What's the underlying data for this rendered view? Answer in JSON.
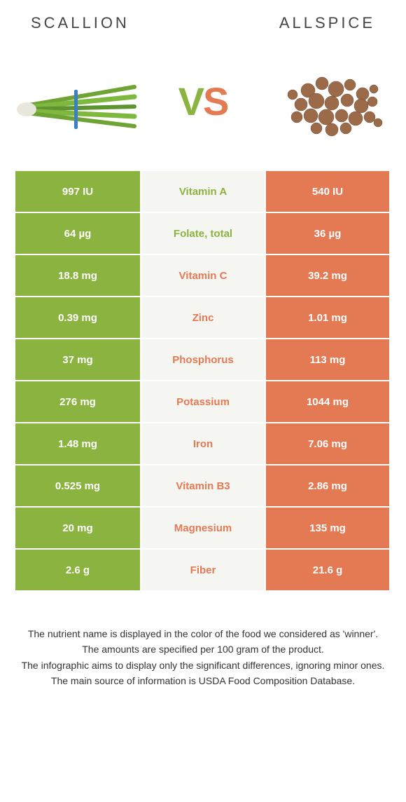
{
  "header": {
    "left_title": "SCALLION",
    "right_title": "ALLSPICE"
  },
  "vs": {
    "v": "V",
    "s": "S"
  },
  "colors": {
    "green": "#8bb33f",
    "orange": "#e37a54",
    "mid_bg": "#f5f5f1"
  },
  "rows": [
    {
      "name": "Vitamin A",
      "left": "997 IU",
      "right": "540 IU",
      "winner": "left"
    },
    {
      "name": "Folate, total",
      "left": "64 µg",
      "right": "36 µg",
      "winner": "left"
    },
    {
      "name": "Vitamin C",
      "left": "18.8 mg",
      "right": "39.2 mg",
      "winner": "right"
    },
    {
      "name": "Zinc",
      "left": "0.39 mg",
      "right": "1.01 mg",
      "winner": "right"
    },
    {
      "name": "Phosphorus",
      "left": "37 mg",
      "right": "113 mg",
      "winner": "right"
    },
    {
      "name": "Potassium",
      "left": "276 mg",
      "right": "1044 mg",
      "winner": "right"
    },
    {
      "name": "Iron",
      "left": "1.48 mg",
      "right": "7.06 mg",
      "winner": "right"
    },
    {
      "name": "Vitamin B3",
      "left": "0.525 mg",
      "right": "2.86 mg",
      "winner": "right"
    },
    {
      "name": "Magnesium",
      "left": "20 mg",
      "right": "135 mg",
      "winner": "right"
    },
    {
      "name": "Fiber",
      "left": "2.6 g",
      "right": "21.6 g",
      "winner": "right"
    }
  ],
  "footer": {
    "l1": "The nutrient name is displayed in the color of the food we considered as 'winner'.",
    "l2": "The amounts are specified per 100 gram of the product.",
    "l3": "The infographic aims to display only the significant differences, ignoring minor ones.",
    "l4": "The main source of information is USDA Food Composition Database."
  }
}
